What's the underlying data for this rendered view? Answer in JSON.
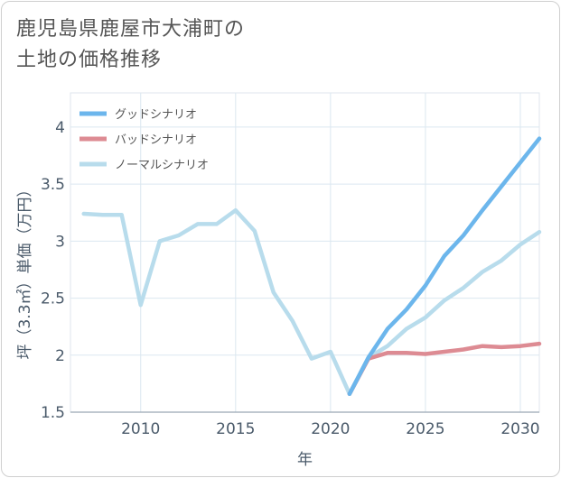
{
  "title_lines": [
    "鹿児島県鹿屋市大浦町の",
    "土地の価格推移"
  ],
  "chart_data": {
    "type": "line",
    "title": "鹿児島県鹿屋市大浦町の土地の価格推移",
    "xlabel": "年",
    "ylabel": "坪（3.3㎡）単価（万円）",
    "xlim": [
      2006.3,
      2031
    ],
    "ylim": [
      1.5,
      4.3
    ],
    "xticks": [
      2010,
      2015,
      2020,
      2025,
      2030
    ],
    "yticks": [
      1.5,
      2,
      2.5,
      3,
      3.5,
      4
    ],
    "grid": true,
    "legend_position": "top-left",
    "series": [
      {
        "name": "グッドシナリオ",
        "color": "#6cb6ec",
        "x": [
          2021,
          2022,
          2023,
          2024,
          2025,
          2026,
          2027,
          2028,
          2029,
          2030,
          2031
        ],
        "y": [
          1.66,
          1.98,
          2.23,
          2.4,
          2.61,
          2.87,
          3.05,
          3.27,
          3.48,
          3.69,
          3.9
        ]
      },
      {
        "name": "バッドシナリオ",
        "color": "#dd8b93",
        "x": [
          2021,
          2022,
          2023,
          2024,
          2025,
          2026,
          2027,
          2028,
          2029,
          2030,
          2031
        ],
        "y": [
          1.66,
          1.97,
          2.02,
          2.02,
          2.01,
          2.03,
          2.05,
          2.08,
          2.07,
          2.08,
          2.1
        ]
      },
      {
        "name": "ノーマルシナリオ",
        "color": "#b8dcec",
        "x": [
          2007,
          2008,
          2009,
          2010,
          2011,
          2012,
          2013,
          2014,
          2015,
          2016,
          2017,
          2018,
          2019,
          2020,
          2021,
          2022,
          2023,
          2024,
          2025,
          2026,
          2027,
          2028,
          2029,
          2030,
          2031
        ],
        "y": [
          3.24,
          3.23,
          3.23,
          2.44,
          3.0,
          3.05,
          3.15,
          3.15,
          3.27,
          3.09,
          2.55,
          2.3,
          1.97,
          2.03,
          1.66,
          1.98,
          2.08,
          2.23,
          2.33,
          2.48,
          2.59,
          2.73,
          2.83,
          2.97,
          3.08
        ]
      }
    ]
  }
}
